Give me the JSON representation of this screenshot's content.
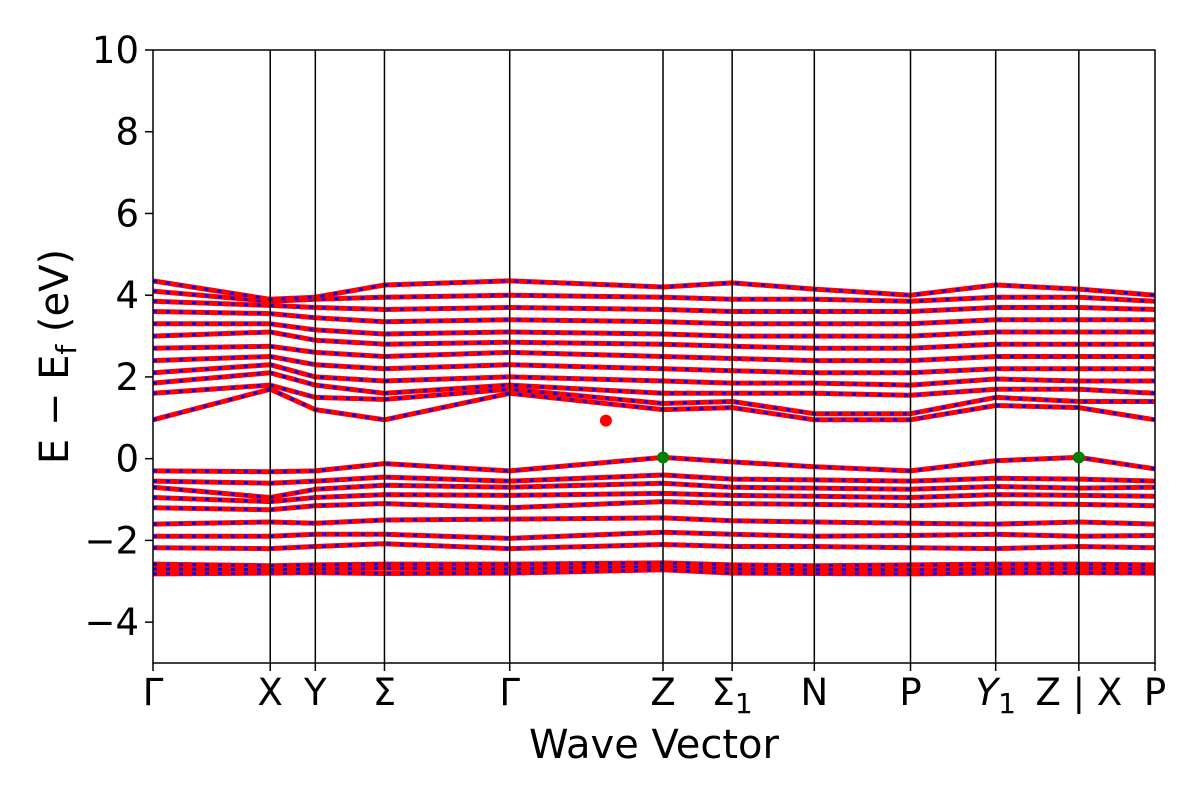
{
  "chart_data": {
    "type": "line",
    "title": "",
    "xlabel": "Wave Vector",
    "ylabel": "E − E_f (eV)",
    "ylabel_parts": {
      "main": "E − E",
      "sub": "f",
      "unit": "(eV)"
    },
    "ylim": [
      -5,
      10
    ],
    "yticks": [
      -4,
      -2,
      0,
      2,
      4,
      6,
      8,
      10
    ],
    "ytick_labels": [
      "−4",
      "−2",
      "0",
      "2",
      "4",
      "6",
      "8",
      "10"
    ],
    "grid": false,
    "high_symmetry_points": [
      {
        "label": "Γ",
        "x": 0.0
      },
      {
        "label": "X",
        "x": 1.17
      },
      {
        "label": "Y",
        "x": 1.62
      },
      {
        "label": "Σ",
        "x": 2.31
      },
      {
        "label": "Γ",
        "x": 3.56
      },
      {
        "label": "Z",
        "x": 5.09
      },
      {
        "label": "Σ",
        "sub": "1",
        "x": 5.78
      },
      {
        "label": "N",
        "x": 6.6
      },
      {
        "label": "P",
        "x": 7.56
      },
      {
        "label": "Y",
        "sub": "1",
        "italic": true,
        "x": 8.41
      },
      {
        "label": "Z | X",
        "x": 9.24
      },
      {
        "label": "P",
        "x": 10.0
      }
    ],
    "xlim": [
      0,
      10
    ],
    "series_colors": {
      "spin_up": "#ff0000",
      "spin_down": "#0000ff"
    },
    "markers": [
      {
        "name": "CBM",
        "x": 4.52,
        "y": 0.93,
        "color": "#ff0000"
      },
      {
        "name": "VBM",
        "x": 5.09,
        "y": 0.03,
        "color": "#008000"
      },
      {
        "name": "VBM",
        "x": 9.24,
        "y": 0.03,
        "color": "#008000"
      }
    ],
    "bands": [
      {
        "values": [
          -2.82,
          -2.8,
          -2.79,
          -2.81,
          -2.8,
          -2.72,
          -2.8,
          -2.81,
          -2.82,
          -2.8,
          -2.79,
          -2.8
        ]
      },
      {
        "values": [
          -2.7,
          -2.72,
          -2.7,
          -2.68,
          -2.7,
          -2.62,
          -2.7,
          -2.72,
          -2.72,
          -2.7,
          -2.68,
          -2.7
        ]
      },
      {
        "values": [
          -2.58,
          -2.62,
          -2.6,
          -2.58,
          -2.58,
          -2.55,
          -2.6,
          -2.62,
          -2.6,
          -2.58,
          -2.58,
          -2.6
        ]
      },
      {
        "values": [
          -2.18,
          -2.2,
          -2.15,
          -2.08,
          -2.2,
          -2.1,
          -2.15,
          -2.15,
          -2.18,
          -2.2,
          -2.15,
          -2.18
        ]
      },
      {
        "values": [
          -1.9,
          -1.9,
          -1.85,
          -1.85,
          -1.95,
          -1.8,
          -1.85,
          -1.9,
          -1.88,
          -1.85,
          -1.9,
          -1.88
        ]
      },
      {
        "values": [
          -1.6,
          -1.55,
          -1.58,
          -1.5,
          -1.48,
          -1.45,
          -1.52,
          -1.55,
          -1.58,
          -1.6,
          -1.55,
          -1.6
        ]
      },
      {
        "values": [
          -1.2,
          -1.25,
          -1.15,
          -1.1,
          -1.2,
          -1.05,
          -1.1,
          -1.12,
          -1.15,
          -1.1,
          -1.12,
          -1.15
        ]
      },
      {
        "values": [
          -0.95,
          -1.05,
          -0.95,
          -0.88,
          -0.9,
          -0.85,
          -0.9,
          -0.92,
          -0.95,
          -0.88,
          -0.9,
          -0.92
        ]
      },
      {
        "values": [
          -0.7,
          -0.95,
          -0.75,
          -0.65,
          -0.7,
          -0.6,
          -0.7,
          -0.72,
          -0.75,
          -0.68,
          -0.72,
          -0.7
        ]
      },
      {
        "values": [
          -0.55,
          -0.6,
          -0.55,
          -0.45,
          -0.55,
          -0.4,
          -0.5,
          -0.52,
          -0.55,
          -0.48,
          -0.5,
          -0.55
        ]
      },
      {
        "values": [
          -0.3,
          -0.32,
          -0.3,
          -0.12,
          -0.3,
          0.03,
          -0.08,
          -0.2,
          -0.3,
          -0.05,
          0.03,
          -0.25
        ]
      },
      {
        "values": [
          0.95,
          1.7,
          1.2,
          0.95,
          1.6,
          1.2,
          1.25,
          0.95,
          0.95,
          1.3,
          1.25,
          0.95
        ]
      },
      {
        "values": [
          1.6,
          1.8,
          1.5,
          1.45,
          1.7,
          1.35,
          1.4,
          1.1,
          1.1,
          1.5,
          1.4,
          1.4
        ]
      },
      {
        "values": [
          1.85,
          2.1,
          1.8,
          1.6,
          1.8,
          1.6,
          1.6,
          1.6,
          1.55,
          1.7,
          1.7,
          1.6
        ]
      },
      {
        "values": [
          2.1,
          2.3,
          2.0,
          1.9,
          2.0,
          1.9,
          1.85,
          1.85,
          1.8,
          1.95,
          1.9,
          1.9
        ]
      },
      {
        "values": [
          2.4,
          2.5,
          2.3,
          2.2,
          2.3,
          2.2,
          2.15,
          2.1,
          2.1,
          2.2,
          2.2,
          2.2
        ]
      },
      {
        "values": [
          2.7,
          2.75,
          2.6,
          2.5,
          2.6,
          2.5,
          2.45,
          2.4,
          2.4,
          2.5,
          2.5,
          2.5
        ]
      },
      {
        "values": [
          3.0,
          3.1,
          2.9,
          2.8,
          2.85,
          2.8,
          2.75,
          2.7,
          2.7,
          2.8,
          2.8,
          2.8
        ]
      },
      {
        "values": [
          3.3,
          3.3,
          3.15,
          3.05,
          3.1,
          3.05,
          3.0,
          3.0,
          3.0,
          3.1,
          3.1,
          3.1
        ]
      },
      {
        "values": [
          3.6,
          3.55,
          3.45,
          3.35,
          3.4,
          3.35,
          3.3,
          3.3,
          3.3,
          3.4,
          3.4,
          3.4
        ]
      },
      {
        "values": [
          3.85,
          3.75,
          3.7,
          3.65,
          3.7,
          3.65,
          3.6,
          3.6,
          3.6,
          3.7,
          3.7,
          3.65
        ]
      },
      {
        "values": [
          4.1,
          3.85,
          3.9,
          3.95,
          4.0,
          3.95,
          3.9,
          3.9,
          3.85,
          3.95,
          3.95,
          3.85
        ]
      },
      {
        "values": [
          4.35,
          3.9,
          3.95,
          4.25,
          4.35,
          4.2,
          4.3,
          4.15,
          4.0,
          4.25,
          4.15,
          4.0
        ]
      }
    ]
  }
}
